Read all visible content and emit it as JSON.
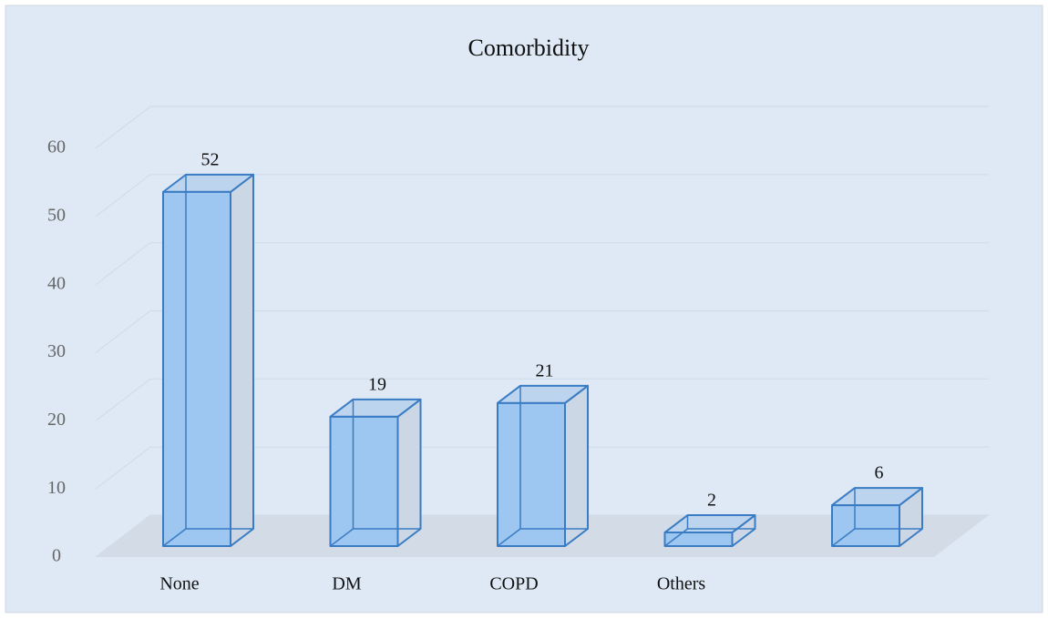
{
  "chart_data": {
    "type": "bar3d",
    "title": "Comorbidity",
    "categories": [
      "None",
      "DM",
      "COPD",
      "Others",
      null
    ],
    "values": [
      52,
      19,
      21,
      2,
      6
    ],
    "color": "#9dc6f0",
    "edge_color": "#3a7cc4",
    "ylim": [
      0,
      60
    ],
    "yticks": [
      0,
      10,
      20,
      30,
      40,
      50,
      60
    ],
    "grid": true
  }
}
